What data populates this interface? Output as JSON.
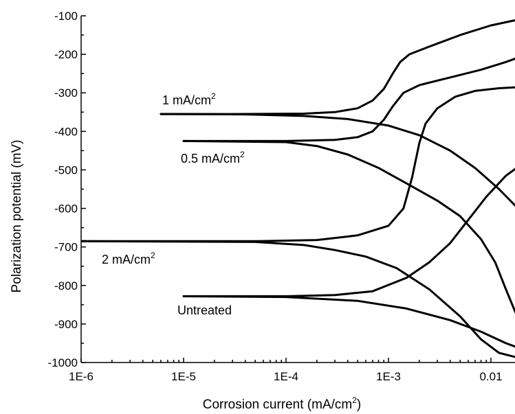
{
  "chart_data": {
    "type": "line",
    "title": "",
    "xlabel": "Corrosion current (mA/cm",
    "xlabel_sup": "2",
    "xlabel_tail": ")",
    "ylabel": "Polarization potential (mV)",
    "xscale": "log",
    "xlim": [
      1e-06,
      0.02
    ],
    "ylim": [
      -1000,
      -100
    ],
    "grid": false,
    "x_tick_values": [
      1e-06,
      1e-05,
      0.0001,
      0.001,
      0.01
    ],
    "x_tick_labels": [
      "1E-6",
      "1E-5",
      "1E-4",
      "1E-3",
      "0.01"
    ],
    "y_tick_values": [
      -100,
      -200,
      -300,
      -400,
      -500,
      -600,
      -700,
      -800,
      -900,
      -1000
    ],
    "y_tick_labels": [
      "-100",
      "-200",
      "-300",
      "-400",
      "-500",
      "-600",
      "-700",
      "-800",
      "-900",
      "-1000"
    ],
    "series": [
      {
        "label_text": "1 mA/cm",
        "label_sup": "2",
        "anodic": [
          [
            6e-06,
            -355
          ],
          [
            3e-05,
            -355
          ],
          [
            0.00015,
            -354
          ],
          [
            0.0003,
            -350
          ],
          [
            0.0005,
            -340
          ],
          [
            0.0007,
            -320
          ],
          [
            0.0009,
            -290
          ],
          [
            0.0011,
            -250
          ],
          [
            0.0013,
            -220
          ],
          [
            0.0016,
            -200
          ],
          [
            0.0025,
            -180
          ],
          [
            0.005,
            -150
          ],
          [
            0.01,
            -125
          ],
          [
            0.02,
            -108
          ]
        ],
        "cathodic": [
          [
            6e-06,
            -355
          ],
          [
            4e-05,
            -356
          ],
          [
            0.00015,
            -360
          ],
          [
            0.0004,
            -368
          ],
          [
            0.001,
            -385
          ],
          [
            0.002,
            -410
          ],
          [
            0.004,
            -450
          ],
          [
            0.007,
            -495
          ],
          [
            0.012,
            -550
          ],
          [
            0.02,
            -610
          ]
        ]
      },
      {
        "label_text": "0.5 mA/cm",
        "label_sup": "2",
        "anodic": [
          [
            1e-05,
            -425
          ],
          [
            0.0001,
            -425
          ],
          [
            0.0003,
            -422
          ],
          [
            0.0005,
            -415
          ],
          [
            0.0007,
            -400
          ],
          [
            0.0009,
            -370
          ],
          [
            0.0011,
            -335
          ],
          [
            0.0014,
            -300
          ],
          [
            0.002,
            -280
          ],
          [
            0.004,
            -260
          ],
          [
            0.008,
            -240
          ],
          [
            0.014,
            -220
          ],
          [
            0.02,
            -205
          ]
        ],
        "cathodic": [
          [
            1e-05,
            -425
          ],
          [
            0.0001,
            -428
          ],
          [
            0.0002,
            -438
          ],
          [
            0.0004,
            -460
          ],
          [
            0.0008,
            -495
          ],
          [
            0.0015,
            -535
          ],
          [
            0.003,
            -580
          ],
          [
            0.005,
            -620
          ],
          [
            0.008,
            -680
          ],
          [
            0.011,
            -740
          ],
          [
            0.014,
            -810
          ],
          [
            0.018,
            -880
          ],
          [
            0.02,
            -910
          ]
        ]
      },
      {
        "label_text": "2 mA/cm",
        "label_sup": "2",
        "anodic": [
          [
            1e-06,
            -685
          ],
          [
            5e-05,
            -685
          ],
          [
            0.0002,
            -682
          ],
          [
            0.0005,
            -670
          ],
          [
            0.001,
            -645
          ],
          [
            0.0014,
            -600
          ],
          [
            0.0017,
            -520
          ],
          [
            0.002,
            -430
          ],
          [
            0.0023,
            -380
          ],
          [
            0.003,
            -340
          ],
          [
            0.0045,
            -310
          ],
          [
            0.007,
            -295
          ],
          [
            0.012,
            -288
          ],
          [
            0.02,
            -285
          ]
        ],
        "cathodic": [
          [
            1e-06,
            -685
          ],
          [
            5e-05,
            -687
          ],
          [
            0.00015,
            -695
          ],
          [
            0.0003,
            -708
          ],
          [
            0.0006,
            -725
          ],
          [
            0.0012,
            -755
          ],
          [
            0.0025,
            -810
          ],
          [
            0.005,
            -880
          ],
          [
            0.008,
            -940
          ],
          [
            0.012,
            -975
          ],
          [
            0.02,
            -990
          ]
        ]
      },
      {
        "label_text": "Untreated",
        "label_sup": "",
        "anodic": [
          [
            1e-05,
            -828
          ],
          [
            0.0001,
            -828
          ],
          [
            0.0003,
            -825
          ],
          [
            0.0007,
            -815
          ],
          [
            0.0015,
            -780
          ],
          [
            0.0025,
            -740
          ],
          [
            0.004,
            -690
          ],
          [
            0.006,
            -630
          ],
          [
            0.009,
            -570
          ],
          [
            0.014,
            -515
          ],
          [
            0.02,
            -485
          ]
        ],
        "cathodic": [
          [
            1e-05,
            -828
          ],
          [
            0.0001,
            -830
          ],
          [
            0.0005,
            -840
          ],
          [
            0.0015,
            -860
          ],
          [
            0.004,
            -890
          ],
          [
            0.008,
            -920
          ],
          [
            0.014,
            -950
          ],
          [
            0.02,
            -965
          ]
        ]
      }
    ]
  }
}
